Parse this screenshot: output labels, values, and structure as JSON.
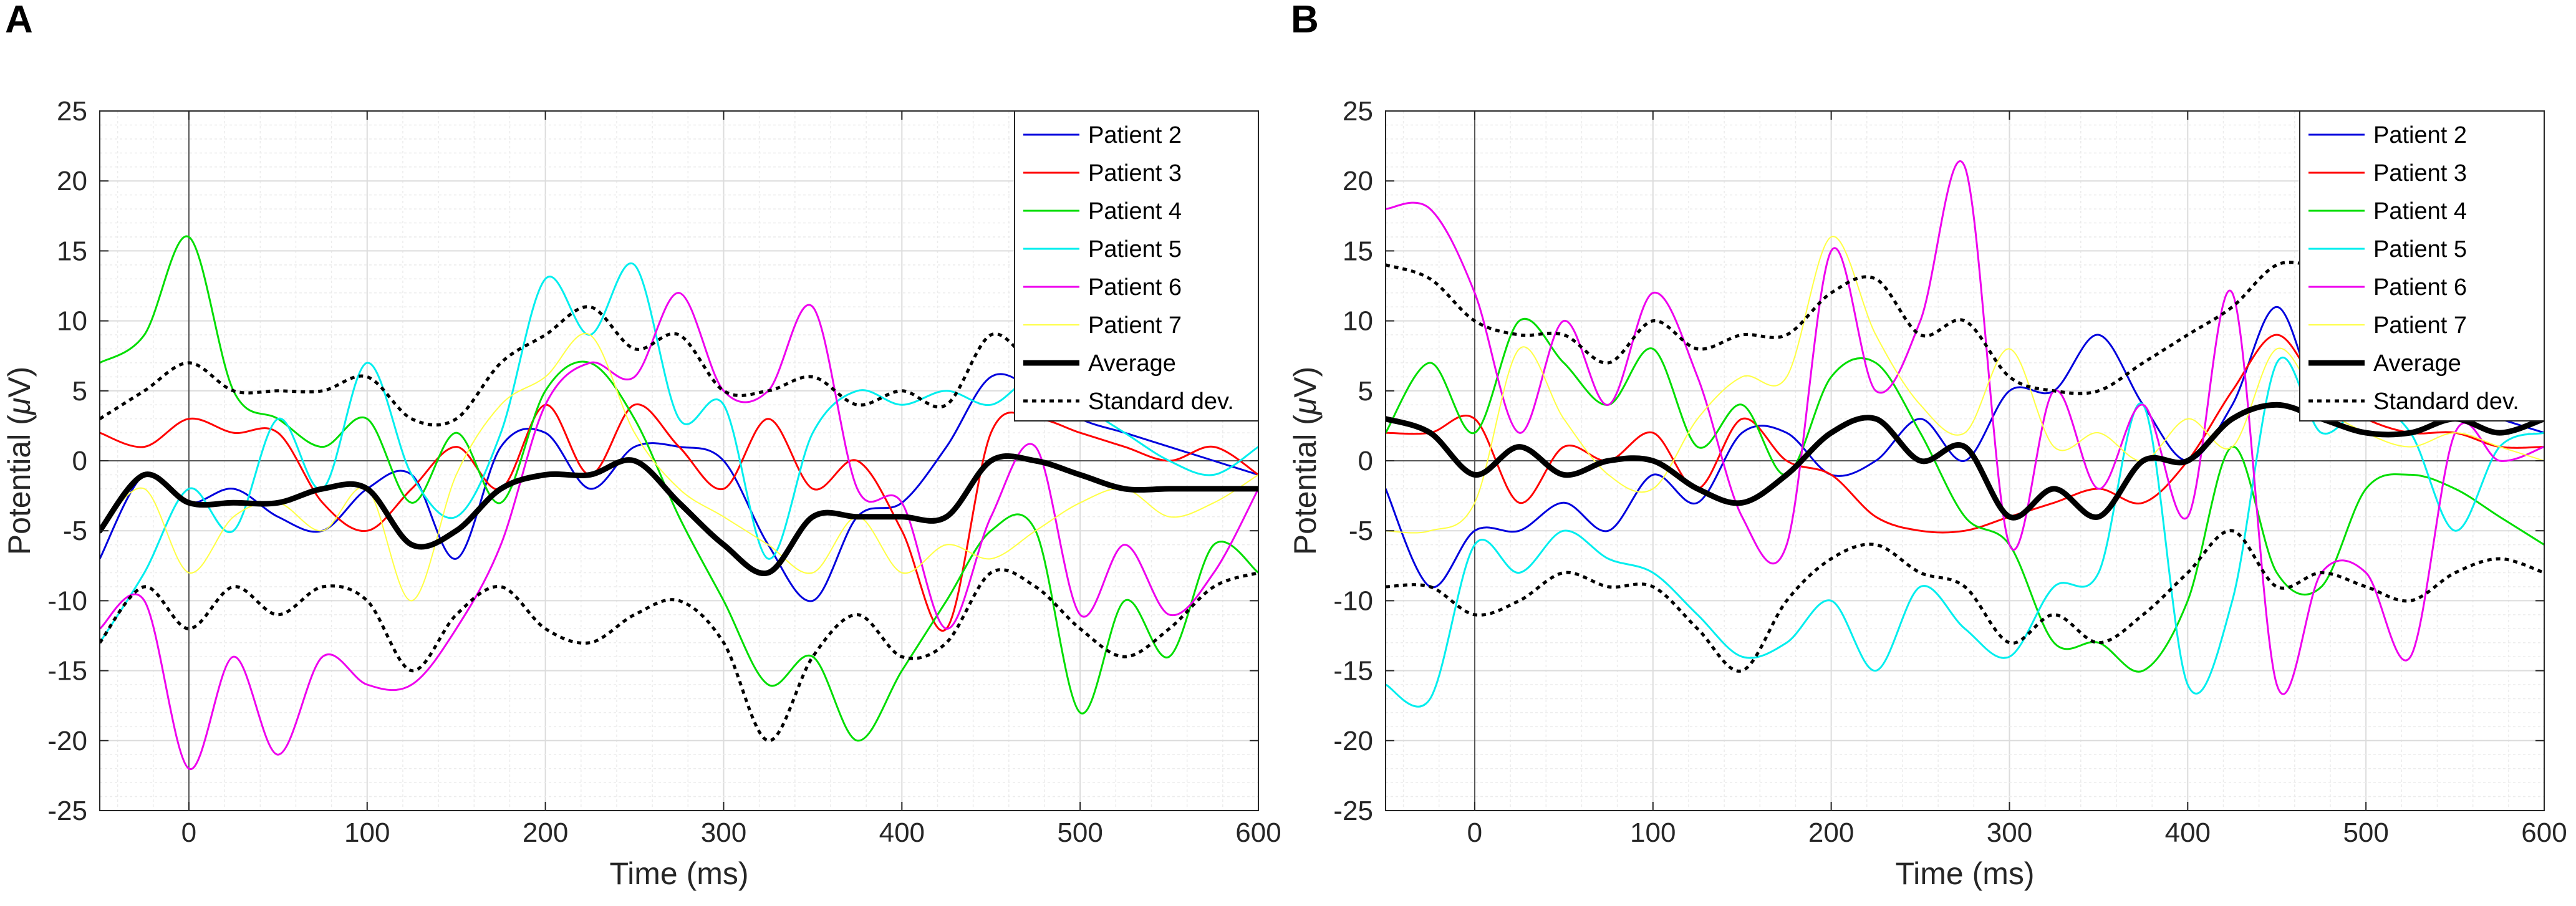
{
  "figure": {
    "panels": [
      {
        "label": "A",
        "chart_data": {
          "type": "line",
          "xlabel": "Time (ms)",
          "ylabel_prefix": "Potential (",
          "ylabel_mu": "μ",
          "ylabel_suffix": "V)",
          "xlim": [
            -50,
            600
          ],
          "ylim": [
            -25,
            25
          ],
          "xticks": [
            0,
            100,
            200,
            300,
            400,
            500,
            600
          ],
          "yticks": [
            -25,
            -20,
            -15,
            -10,
            -5,
            0,
            5,
            10,
            15,
            20,
            25
          ],
          "xticks_labels": [
            "0",
            "100",
            "200",
            "300",
            "400",
            "500",
            "600"
          ],
          "yticks_labels": [
            "-25",
            "-20",
            "-15",
            "-10",
            "-5",
            "0",
            "5",
            "10",
            "15",
            "20",
            "25"
          ],
          "grid": true,
          "legend_position": "top-right",
          "x": [
            -50,
            -25,
            0,
            25,
            50,
            75,
            100,
            125,
            150,
            175,
            200,
            225,
            250,
            275,
            300,
            325,
            350,
            375,
            400,
            425,
            450,
            475,
            500,
            525,
            550,
            575,
            600
          ],
          "series": [
            {
              "name": "Patient 2",
              "color": "#0000dd",
              "width": 3,
              "dash": "",
              "values": [
                -7,
                -1,
                -3,
                -2,
                -4,
                -5,
                -2,
                -1,
                -7,
                1,
                2,
                -2,
                1,
                1,
                0,
                -6,
                -10,
                -4,
                -3,
                1,
                6,
                5,
                3,
                2,
                1,
                0,
                -1
              ]
            },
            {
              "name": "Patient 3",
              "color": "#ff0000",
              "width": 3,
              "dash": "",
              "values": [
                2,
                1,
                3,
                2,
                2,
                -3,
                -5,
                -2,
                1,
                -2,
                4,
                -1,
                4,
                1,
                -2,
                3,
                -2,
                0,
                -5,
                -12,
                2,
                3,
                2,
                1,
                0,
                1,
                -1
              ]
            },
            {
              "name": "Patient 4",
              "color": "#00dd00",
              "width": 3,
              "dash": "",
              "values": [
                7,
                9,
                16,
                5,
                3,
                1,
                3,
                -3,
                2,
                -3,
                5,
                7,
                3,
                -4,
                -10,
                -16,
                -14,
                -20,
                -15,
                -10,
                -5,
                -5,
                -18,
                -10,
                -14,
                -6,
                -8
              ]
            },
            {
              "name": "Patient 5",
              "color": "#00eeee",
              "width": 3,
              "dash": "",
              "values": [
                -13,
                -8,
                -2,
                -5,
                3,
                -2,
                7,
                -1,
                -4,
                2,
                13,
                9,
                14,
                3,
                4,
                -7,
                2,
                5,
                4,
                5,
                4,
                6,
                4,
                2,
                0,
                -1,
                1
              ]
            },
            {
              "name": "Patient 6",
              "color": "#ee00ee",
              "width": 3,
              "dash": "",
              "values": [
                -12,
                -10,
                -22,
                -14,
                -21,
                -14,
                -16,
                -16,
                -12,
                -6,
                4,
                7,
                6,
                12,
                5,
                5,
                11,
                -2,
                -3,
                -12,
                -4,
                1,
                -11,
                -6,
                -11,
                -8,
                -2
              ]
            },
            {
              "name": "Patient 7",
              "color": "#ffff44",
              "width": 2,
              "dash": "",
              "values": [
                -5,
                -2,
                -8,
                -4,
                -3,
                -5,
                -2,
                -10,
                -1,
                4,
                6,
                9,
                2,
                -2,
                -4,
                -6,
                -8,
                -4,
                -8,
                -6,
                -7,
                -5,
                -3,
                -2,
                -4,
                -3,
                -1
              ]
            },
            {
              "name": "Average",
              "color": "#000000",
              "width": 9,
              "dash": "",
              "values": [
                -5,
                -1,
                -3,
                -3,
                -3,
                -2,
                -2,
                -6,
                -5,
                -2,
                -1,
                -1,
                0,
                -3,
                -6,
                -8,
                -4,
                -4,
                -4,
                -4,
                0,
                0,
                -1,
                -2,
                -2,
                -2,
                -2
              ]
            },
            {
              "name": "Standard dev.",
              "color": "#000000",
              "width": 5,
              "dash": "7,7",
              "values": [
                3,
                5,
                7,
                5,
                5,
                5,
                6,
                3,
                3,
                7,
                9,
                11,
                8,
                9,
                5,
                5,
                6,
                4,
                5,
                4,
                9,
                7,
                8,
                6,
                4,
                7,
                9
              ]
            },
            {
              "name": "",
              "color": "#000000",
              "width": 5,
              "dash": "7,7",
              "values": [
                -13,
                -9,
                -12,
                -9,
                -11,
                -9,
                -10,
                -15,
                -11,
                -9,
                -12,
                -13,
                -11,
                -10,
                -13,
                -20,
                -14,
                -11,
                -14,
                -13,
                -8,
                -9,
                -12,
                -14,
                -12,
                -9,
                -8
              ]
            }
          ]
        }
      },
      {
        "label": "B",
        "chart_data": {
          "type": "line",
          "xlabel": "Time (ms)",
          "ylabel_prefix": "Potential (",
          "ylabel_mu": "μ",
          "ylabel_suffix": "V)",
          "xlim": [
            -50,
            600
          ],
          "ylim": [
            -25,
            25
          ],
          "xticks": [
            0,
            100,
            200,
            300,
            400,
            500,
            600
          ],
          "yticks": [
            -25,
            -20,
            -15,
            -10,
            -5,
            0,
            5,
            10,
            15,
            20,
            25
          ],
          "xticks_labels": [
            "0",
            "100",
            "200",
            "300",
            "400",
            "500",
            "600"
          ],
          "yticks_labels": [
            "-25",
            "-20",
            "-15",
            "-10",
            "-5",
            "0",
            "5",
            "10",
            "15",
            "20",
            "25"
          ],
          "grid": true,
          "legend_position": "top-right",
          "x": [
            -50,
            -25,
            0,
            25,
            50,
            75,
            100,
            125,
            150,
            175,
            200,
            225,
            250,
            275,
            300,
            325,
            350,
            375,
            400,
            425,
            450,
            475,
            500,
            525,
            550,
            575,
            600
          ],
          "series": [
            {
              "name": "Patient 2",
              "color": "#0000dd",
              "width": 3,
              "dash": "",
              "values": [
                -2,
                -9,
                -5,
                -5,
                -3,
                -5,
                -1,
                -3,
                2,
                2,
                -1,
                0,
                3,
                0,
                5,
                5,
                9,
                4,
                0,
                4,
                11,
                4,
                6,
                5,
                4,
                3,
                2
              ]
            },
            {
              "name": "Patient 3",
              "color": "#ff0000",
              "width": 3,
              "dash": "",
              "values": [
                2,
                2,
                3,
                -3,
                1,
                0,
                2,
                -2,
                3,
                0,
                -1,
                -4,
                -5,
                -5,
                -4,
                -3,
                -2,
                -3,
                0,
                5,
                9,
                5,
                3,
                2,
                2,
                1,
                1
              ]
            },
            {
              "name": "Patient 4",
              "color": "#00dd00",
              "width": 3,
              "dash": "",
              "values": [
                2,
                7,
                2,
                10,
                7,
                4,
                8,
                1,
                4,
                -1,
                6,
                7,
                2,
                -4,
                -6,
                -13,
                -13,
                -15,
                -10,
                1,
                -8,
                -9,
                -2,
                -1,
                -2,
                -4,
                -6
              ]
            },
            {
              "name": "Patient 5",
              "color": "#00eeee",
              "width": 3,
              "dash": "",
              "values": [
                -16,
                -17,
                -6,
                -8,
                -5,
                -7,
                -8,
                -11,
                -14,
                -13,
                -10,
                -15,
                -9,
                -12,
                -14,
                -9,
                -8,
                4,
                -16,
                -10,
                7,
                2,
                4,
                2,
                -5,
                1,
                2
              ]
            },
            {
              "name": "Patient 6",
              "color": "#ee00ee",
              "width": 3,
              "dash": "",
              "values": [
                18,
                18,
                12,
                2,
                10,
                4,
                12,
                6,
                -4,
                -6,
                15,
                5,
                10,
                21,
                -6,
                5,
                -2,
                4,
                -4,
                12,
                -16,
                -8,
                -8,
                -14,
                2,
                0,
                1
              ]
            },
            {
              "name": "Patient 7",
              "color": "#ffff44",
              "width": 2,
              "dash": "",
              "values": [
                -5,
                -5,
                -3,
                8,
                3,
                -1,
                -2,
                3,
                6,
                6,
                16,
                9,
                4,
                2,
                8,
                1,
                2,
                0,
                3,
                1,
                8,
                4,
                2,
                1,
                2,
                1,
                0
              ]
            },
            {
              "name": "Average",
              "color": "#000000",
              "width": 9,
              "dash": "",
              "values": [
                3,
                2,
                -1,
                1,
                -1,
                0,
                0,
                -2,
                -3,
                -1,
                2,
                3,
                0,
                1,
                -4,
                -2,
                -4,
                0,
                0,
                3,
                4,
                3,
                2,
                2,
                3,
                2,
                3
              ]
            },
            {
              "name": "Standard dev.",
              "color": "#000000",
              "width": 5,
              "dash": "7,7",
              "values": [
                14,
                13,
                10,
                9,
                9,
                7,
                10,
                8,
                9,
                9,
                12,
                13,
                9,
                10,
                6,
                5,
                5,
                7,
                9,
                11,
                14,
                14,
                15,
                14,
                13,
                14,
                15
              ]
            },
            {
              "name": "",
              "color": "#000000",
              "width": 5,
              "dash": "7,7",
              "values": [
                -9,
                -9,
                -11,
                -10,
                -8,
                -9,
                -9,
                -12,
                -15,
                -10,
                -7,
                -6,
                -8,
                -9,
                -13,
                -11,
                -13,
                -11,
                -8,
                -5,
                -9,
                -8,
                -9,
                -10,
                -8,
                -7,
                -8
              ]
            }
          ]
        }
      }
    ]
  }
}
